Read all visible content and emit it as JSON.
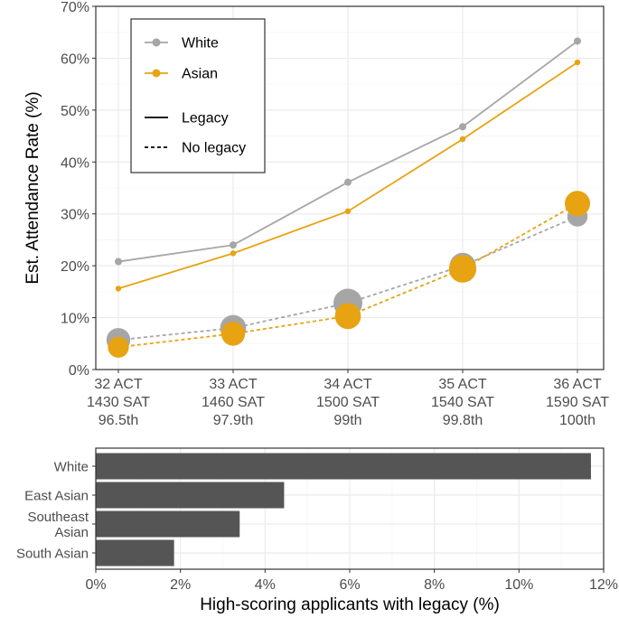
{
  "chart_data": [
    {
      "type": "line",
      "title": "",
      "ylabel": "Est. Attendance Rate (%)",
      "xlabel": "",
      "ylim": [
        0,
        70
      ],
      "yticks": [
        0,
        10,
        20,
        30,
        40,
        50,
        60,
        70
      ],
      "ytick_labels": [
        "0%",
        "10%",
        "20%",
        "30%",
        "40%",
        "50%",
        "60%",
        "70%"
      ],
      "categories": [
        [
          "32 ACT",
          "1430 SAT",
          "96.5th"
        ],
        [
          "33 ACT",
          "1460 SAT",
          "97.9th"
        ],
        [
          "34 ACT",
          "1500 SAT",
          "99th"
        ],
        [
          "35 ACT",
          "1540 SAT",
          "99.8th"
        ],
        [
          "36 ACT",
          "1590 SAT",
          "100th"
        ]
      ],
      "series": [
        {
          "name": "White",
          "group": "White",
          "legacy": "Legacy",
          "color": "#a6a6a6",
          "linestyle": "solid",
          "values": [
            20.8,
            24.0,
            36.1,
            46.8,
            63.3
          ],
          "size": [
            1,
            1,
            1,
            1,
            1
          ]
        },
        {
          "name": "Asian",
          "group": "Asian",
          "legacy": "Legacy",
          "color": "#e7a311",
          "linestyle": "solid",
          "values": [
            15.6,
            22.4,
            30.5,
            44.4,
            59.2
          ],
          "size": [
            0.8,
            0.8,
            0.8,
            0.8,
            0.8
          ]
        },
        {
          "name": "White",
          "group": "White",
          "legacy": "No legacy",
          "color": "#a6a6a6",
          "linestyle": "dashed",
          "values": [
            5.7,
            8.0,
            12.8,
            20.0,
            29.5
          ],
          "size": [
            3.3,
            3.6,
            4.0,
            3.6,
            2.8
          ]
        },
        {
          "name": "Asian",
          "group": "Asian",
          "legacy": "No legacy",
          "color": "#e7a311",
          "linestyle": "dashed",
          "values": [
            4.3,
            6.9,
            10.3,
            19.4,
            32.0
          ],
          "size": [
            2.9,
            3.3,
            3.6,
            3.8,
            3.5
          ]
        }
      ],
      "legend": {
        "placement": "top-left",
        "color_entries": [
          {
            "label": "White",
            "color": "#a6a6a6"
          },
          {
            "label": "Asian",
            "color": "#e7a311"
          }
        ],
        "line_entries": [
          {
            "label": "Legacy",
            "linestyle": "solid"
          },
          {
            "label": "No legacy",
            "linestyle": "dashed"
          }
        ]
      },
      "grid": true
    },
    {
      "type": "bar",
      "orientation": "horizontal",
      "title": "",
      "xlabel": "High-scoring applicants with legacy (%)",
      "ylabel": "",
      "xlim": [
        0,
        12
      ],
      "xticks": [
        0,
        2,
        4,
        6,
        8,
        10,
        12
      ],
      "xtick_labels": [
        "0%",
        "2%",
        "4%",
        "6%",
        "8%",
        "10%",
        "12%"
      ],
      "categories": [
        [
          "White"
        ],
        [
          "East Asian"
        ],
        [
          "Southeast",
          "Asian"
        ],
        [
          "South Asian"
        ]
      ],
      "values": [
        11.7,
        4.45,
        3.4,
        1.85
      ],
      "bar_color": "#555555",
      "grid": true
    }
  ]
}
